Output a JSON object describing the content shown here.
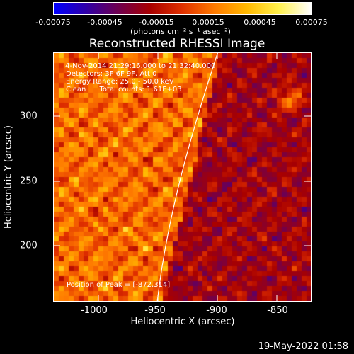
{
  "colorbar": {
    "ticks": [
      "-0.00075",
      "-0.00045",
      "-0.00015",
      "0.00015",
      "0.00045",
      "0.00075"
    ],
    "units": "(photons cm⁻² s⁻¹ asec⁻²)",
    "colors": [
      "#0000ff",
      "#2f00a8",
      "#6e0050",
      "#a80000",
      "#e03000",
      "#ff7a00",
      "#ffb800",
      "#fff04c",
      "#ffffff"
    ]
  },
  "plot": {
    "title": "Reconstructed RHESSI Image",
    "info_lines": [
      " 4-Nov-2014 21:29:16.000 to 21:32:40.000",
      "Detectors: 3F 6F 9F, Att 0",
      "Energy Range: 25.0 - 50.0 keV",
      "Clean      Total counts: 1.61E+03"
    ],
    "peak_label": "Position of Peak = [-872,314]",
    "xlabel": "Heliocentric X (arcsec)",
    "ylabel": "Heliocentric Y (arcsec)",
    "x_ticks": [
      "-1000",
      "-950",
      "-900",
      "-850"
    ],
    "y_ticks": [
      "300",
      "250",
      "200"
    ],
    "limb_color": "#ffffff"
  },
  "timestamp": "19-May-2022 01:58",
  "chart_data": {
    "type": "heatmap",
    "title": "Reconstructed RHESSI Image",
    "xlabel": "Heliocentric X (arcsec)",
    "ylabel": "Heliocentric Y (arcsec)",
    "xlim": [
      -1030,
      -835
    ],
    "ylim": [
      148,
      338
    ],
    "clim": [
      -0.00075,
      0.00075
    ],
    "peak": [
      -872,
      314
    ]
  }
}
